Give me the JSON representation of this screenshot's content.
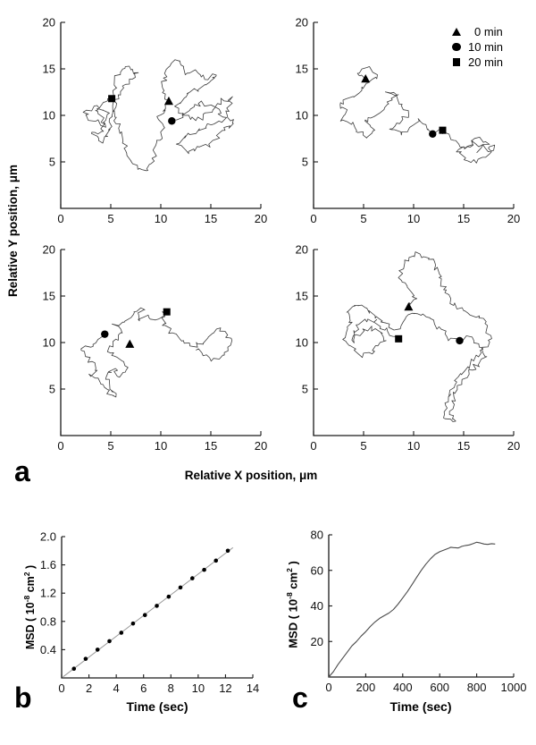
{
  "colors": {
    "background": "#ffffff",
    "axis": "#1a1a1a",
    "trace": "#3d3d3d",
    "marker": "#000000",
    "fit_line": "#9a9a9a",
    "curve": "#4a4a4a"
  },
  "legend": {
    "entries": [
      {
        "marker": "triangle",
        "label": "0 min"
      },
      {
        "marker": "circle",
        "label": "10 min"
      },
      {
        "marker": "square",
        "label": "20 min"
      }
    ]
  },
  "chart_data": [
    {
      "id": "a",
      "type": "scatter",
      "panel_label": "a",
      "xlabel": "Relative X position, μm",
      "ylabel": "Relative Y position, μm",
      "xlim": [
        0,
        20
      ],
      "ylim": [
        0,
        20
      ],
      "xticks": [
        0,
        5,
        10,
        15,
        20
      ],
      "yticks": [
        5,
        10,
        15,
        20
      ],
      "legend_position": "top-right of top-right subpanel",
      "subpanels": [
        {
          "position": "top-left",
          "seed": 101,
          "markers": {
            "triangle": [
              10.8,
              11.5
            ],
            "circle": [
              11.1,
              9.4
            ],
            "square": [
              5.1,
              11.8
            ]
          },
          "waypoints": [
            [
              5.1,
              11.8
            ],
            [
              4,
              11
            ],
            [
              2.5,
              10.5
            ],
            [
              3,
              9.5
            ],
            [
              4.5,
              9
            ],
            [
              3.5,
              10.8
            ],
            [
              4.8,
              10.2
            ],
            [
              4,
              8.2
            ],
            [
              3,
              8
            ],
            [
              4.2,
              7.2
            ],
            [
              5,
              8.5
            ],
            [
              5.5,
              14
            ],
            [
              6.5,
              15.2
            ],
            [
              7.8,
              14.6
            ],
            [
              7,
              13.8
            ],
            [
              6,
              12.8
            ],
            [
              5.2,
              10.6
            ],
            [
              6,
              8
            ],
            [
              6.8,
              5.6
            ],
            [
              7.6,
              4.4
            ],
            [
              8.4,
              3.9
            ],
            [
              9.2,
              5.2
            ],
            [
              9.6,
              7
            ],
            [
              10.4,
              8.8
            ],
            [
              9.8,
              9.6
            ],
            [
              10.6,
              11.2
            ],
            [
              10.2,
              13.2
            ],
            [
              10.8,
              15.4
            ],
            [
              11.8,
              16
            ],
            [
              12.4,
              14.6
            ],
            [
              13.4,
              14.8
            ],
            [
              14.6,
              14
            ],
            [
              15.6,
              14.4
            ],
            [
              13.8,
              13
            ],
            [
              12.6,
              12.2
            ],
            [
              11.6,
              11
            ],
            [
              12.4,
              10
            ],
            [
              13.6,
              9.4
            ],
            [
              14.8,
              10.2
            ],
            [
              16,
              11.6
            ],
            [
              17.2,
              11.8
            ],
            [
              16.6,
              10.4
            ],
            [
              17.4,
              9.2
            ],
            [
              16.2,
              8.4
            ],
            [
              15,
              7
            ],
            [
              13.8,
              6.4
            ],
            [
              12.6,
              6
            ],
            [
              11.8,
              7
            ],
            [
              12.8,
              8
            ],
            [
              14,
              8.6
            ],
            [
              15.2,
              9
            ],
            [
              16.4,
              9.6
            ],
            [
              15.4,
              10.8
            ],
            [
              14.2,
              11.4
            ],
            [
              13,
              10.6
            ],
            [
              12,
              9.8
            ],
            [
              11.1,
              9.4
            ]
          ]
        },
        {
          "position": "top-right",
          "seed": 202,
          "markers": {
            "triangle": [
              5.2,
              13.9
            ],
            "circle": [
              11.9,
              8.0
            ],
            "square": [
              12.9,
              8.4
            ]
          },
          "waypoints": [
            [
              5.2,
              13.9
            ],
            [
              4.4,
              14.6
            ],
            [
              5.6,
              15.2
            ],
            [
              6.4,
              14.4
            ],
            [
              5.4,
              13.2
            ],
            [
              4.4,
              12.4
            ],
            [
              3.2,
              11.4
            ],
            [
              2.4,
              11
            ],
            [
              3.4,
              10.4
            ],
            [
              2.6,
              9.6
            ],
            [
              3.8,
              9
            ],
            [
              4.6,
              8.2
            ],
            [
              5.4,
              7.6
            ],
            [
              6.2,
              8.4
            ],
            [
              5.2,
              9.4
            ],
            [
              6.4,
              10.2
            ],
            [
              7.4,
              11.2
            ],
            [
              8.2,
              12
            ],
            [
              7.4,
              12.6
            ],
            [
              8.6,
              11.4
            ],
            [
              9.4,
              10.2
            ],
            [
              8.6,
              9.2
            ],
            [
              7.8,
              8.4
            ],
            [
              8.8,
              8
            ],
            [
              9.8,
              8.8
            ],
            [
              10.6,
              9.4
            ],
            [
              11.2,
              8.8
            ],
            [
              11.9,
              8.0
            ],
            [
              12.9,
              8.4
            ],
            [
              13.6,
              7.6
            ],
            [
              14.4,
              7
            ],
            [
              15.2,
              6.4
            ],
            [
              16,
              7.2
            ],
            [
              16.8,
              6.8
            ],
            [
              17.6,
              6.2
            ],
            [
              18,
              6.8
            ],
            [
              17.2,
              5.6
            ],
            [
              16.2,
              5
            ],
            [
              15.2,
              5.4
            ],
            [
              14.4,
              6.2
            ],
            [
              15.6,
              6.8
            ],
            [
              16.6,
              7.4
            ],
            [
              17.4,
              7
            ],
            [
              16.4,
              6.2
            ]
          ]
        },
        {
          "position": "bottom-left",
          "seed": 303,
          "markers": {
            "triangle": [
              6.9,
              9.8
            ],
            "circle": [
              4.4,
              10.9
            ],
            "square": [
              10.6,
              13.3
            ]
          },
          "waypoints": [
            [
              4.4,
              10.9
            ],
            [
              3.2,
              9.6
            ],
            [
              2,
              9.2
            ],
            [
              2.8,
              8.4
            ],
            [
              3.6,
              7
            ],
            [
              3,
              6.4
            ],
            [
              4,
              5.6
            ],
            [
              4.8,
              4.4
            ],
            [
              5.6,
              4
            ],
            [
              5,
              5.2
            ],
            [
              4.4,
              6.4
            ],
            [
              5.2,
              7.2
            ],
            [
              6,
              6.4
            ],
            [
              6.8,
              7.4
            ],
            [
              5.8,
              8.2
            ],
            [
              4.6,
              9
            ],
            [
              5.4,
              10.2
            ],
            [
              6.2,
              11
            ],
            [
              5.4,
              11.8
            ],
            [
              6.6,
              12.4
            ],
            [
              7.4,
              13.2
            ],
            [
              8.2,
              13.6
            ],
            [
              7.6,
              12.6
            ],
            [
              8.8,
              12.8
            ],
            [
              9.6,
              12.2
            ],
            [
              10.6,
              13.3
            ],
            [
              10.2,
              12
            ],
            [
              11,
              11.2
            ],
            [
              11.8,
              10.6
            ],
            [
              12.6,
              10
            ],
            [
              13.4,
              9.6
            ],
            [
              14.2,
              10
            ],
            [
              15,
              10.8
            ],
            [
              15.8,
              11.4
            ],
            [
              16.6,
              11
            ],
            [
              17,
              9.8
            ],
            [
              16.2,
              8.6
            ],
            [
              15.2,
              8.2
            ],
            [
              14.4,
              8.8
            ],
            [
              13.6,
              9.2
            ]
          ]
        },
        {
          "position": "bottom-right",
          "seed": 404,
          "markers": {
            "triangle": [
              9.5,
              13.8
            ],
            "circle": [
              14.6,
              10.2
            ],
            "square": [
              8.5,
              10.4
            ]
          },
          "waypoints": [
            [
              9.5,
              13.8
            ],
            [
              10.2,
              14.8
            ],
            [
              9.4,
              15.8
            ],
            [
              8.6,
              17
            ],
            [
              9,
              18.4
            ],
            [
              10.2,
              19.6
            ],
            [
              11.6,
              19
            ],
            [
              12.6,
              17.6
            ],
            [
              13,
              16
            ],
            [
              13.6,
              14.6
            ],
            [
              14.6,
              13.8
            ],
            [
              15.6,
              13.2
            ],
            [
              16.6,
              12.6
            ],
            [
              17.4,
              11.6
            ],
            [
              17.6,
              10.2
            ],
            [
              16.8,
              9
            ],
            [
              16,
              8.2
            ],
            [
              15.2,
              7.2
            ],
            [
              14.4,
              6.4
            ],
            [
              13.8,
              5
            ],
            [
              13.2,
              3.4
            ],
            [
              13,
              2
            ],
            [
              14,
              1.4
            ],
            [
              13.6,
              2.8
            ],
            [
              14.2,
              4.4
            ],
            [
              14.8,
              5.8
            ],
            [
              15.6,
              6.8
            ],
            [
              16.4,
              7.6
            ],
            [
              17.2,
              8.4
            ],
            [
              16.6,
              9.6
            ],
            [
              15.8,
              10.6
            ],
            [
              14.6,
              10.2
            ],
            [
              13.6,
              10.4
            ],
            [
              12.8,
              11.2
            ],
            [
              12,
              12.2
            ],
            [
              11,
              12.8
            ],
            [
              10,
              13.2
            ],
            [
              9,
              12.4
            ],
            [
              8.2,
              11.4
            ],
            [
              7.2,
              12
            ],
            [
              6.2,
              12.8
            ],
            [
              5.2,
              13.8
            ],
            [
              4.2,
              14.2
            ],
            [
              3.2,
              13.4
            ],
            [
              3.6,
              12
            ],
            [
              3,
              10.8
            ],
            [
              3.8,
              9.4
            ],
            [
              4.6,
              8.6
            ],
            [
              5.6,
              8.8
            ],
            [
              6.6,
              9.6
            ],
            [
              7.2,
              10.4
            ],
            [
              6.6,
              11.2
            ],
            [
              5.6,
              11.6
            ],
            [
              4.6,
              11
            ],
            [
              3.8,
              10.2
            ],
            [
              4.6,
              12.2
            ],
            [
              5.8,
              12.4
            ],
            [
              7,
              11.6
            ],
            [
              8,
              10.8
            ],
            [
              8.5,
              10.4
            ]
          ]
        }
      ]
    },
    {
      "id": "b",
      "type": "scatter",
      "panel_label": "b",
      "xlabel": "Time (sec)",
      "ylabel_parts": {
        "pre": "MSD ( 10",
        "sup1": "-8",
        "mid": " cm",
        "sup2": "2",
        "post": " )"
      },
      "xlim": [
        0,
        14
      ],
      "ylim": [
        0,
        2.0
      ],
      "xticks": [
        0,
        2,
        4,
        6,
        8,
        10,
        12,
        14
      ],
      "ytick_labels": [
        "0.4",
        "0.8",
        "1.2",
        "1.6",
        "2.0"
      ],
      "points": [
        [
          0.9,
          0.13
        ],
        [
          1.76,
          0.27
        ],
        [
          2.63,
          0.4
        ],
        [
          3.5,
          0.52
        ],
        [
          4.37,
          0.64
        ],
        [
          5.23,
          0.77
        ],
        [
          6.1,
          0.89
        ],
        [
          6.97,
          1.02
        ],
        [
          7.84,
          1.15
        ],
        [
          8.7,
          1.28
        ],
        [
          9.57,
          1.41
        ],
        [
          10.44,
          1.53
        ],
        [
          11.3,
          1.66
        ],
        [
          12.17,
          1.8
        ]
      ],
      "fit_line": [
        [
          0.1,
          0.015
        ],
        [
          12.55,
          1.845
        ]
      ]
    },
    {
      "id": "c",
      "type": "line",
      "panel_label": "c",
      "xlabel": "Time (sec)",
      "ylabel_parts": {
        "pre": "MSD ( 10",
        "sup1": "-8",
        "mid": " cm",
        "sup2": "2",
        "post": " )"
      },
      "xlim": [
        0,
        1000
      ],
      "ylim": [
        0,
        80
      ],
      "xticks": [
        0,
        200,
        400,
        600,
        800,
        1000
      ],
      "yticks": [
        20,
        40,
        60,
        80
      ],
      "points": [
        [
          0,
          0
        ],
        [
          25,
          3
        ],
        [
          50,
          7
        ],
        [
          75,
          10.5
        ],
        [
          100,
          14
        ],
        [
          125,
          17.5
        ],
        [
          150,
          20
        ],
        [
          175,
          23
        ],
        [
          200,
          25.5
        ],
        [
          225,
          28.5
        ],
        [
          250,
          31
        ],
        [
          275,
          33
        ],
        [
          300,
          34.5
        ],
        [
          325,
          36
        ],
        [
          350,
          38
        ],
        [
          375,
          41
        ],
        [
          400,
          44.5
        ],
        [
          425,
          48
        ],
        [
          450,
          52
        ],
        [
          475,
          56
        ],
        [
          500,
          60
        ],
        [
          525,
          63.5
        ],
        [
          550,
          66.5
        ],
        [
          575,
          69
        ],
        [
          600,
          70.5
        ],
        [
          625,
          71.5
        ],
        [
          650,
          72.5
        ],
        [
          660,
          73
        ],
        [
          675,
          72.8
        ],
        [
          700,
          72.6
        ],
        [
          720,
          73.5
        ],
        [
          740,
          74
        ],
        [
          760,
          74.3
        ],
        [
          780,
          75
        ],
        [
          800,
          75.8
        ],
        [
          820,
          75.4
        ],
        [
          840,
          74.8
        ],
        [
          860,
          74.6
        ],
        [
          880,
          75
        ],
        [
          900,
          74.8
        ]
      ]
    }
  ]
}
